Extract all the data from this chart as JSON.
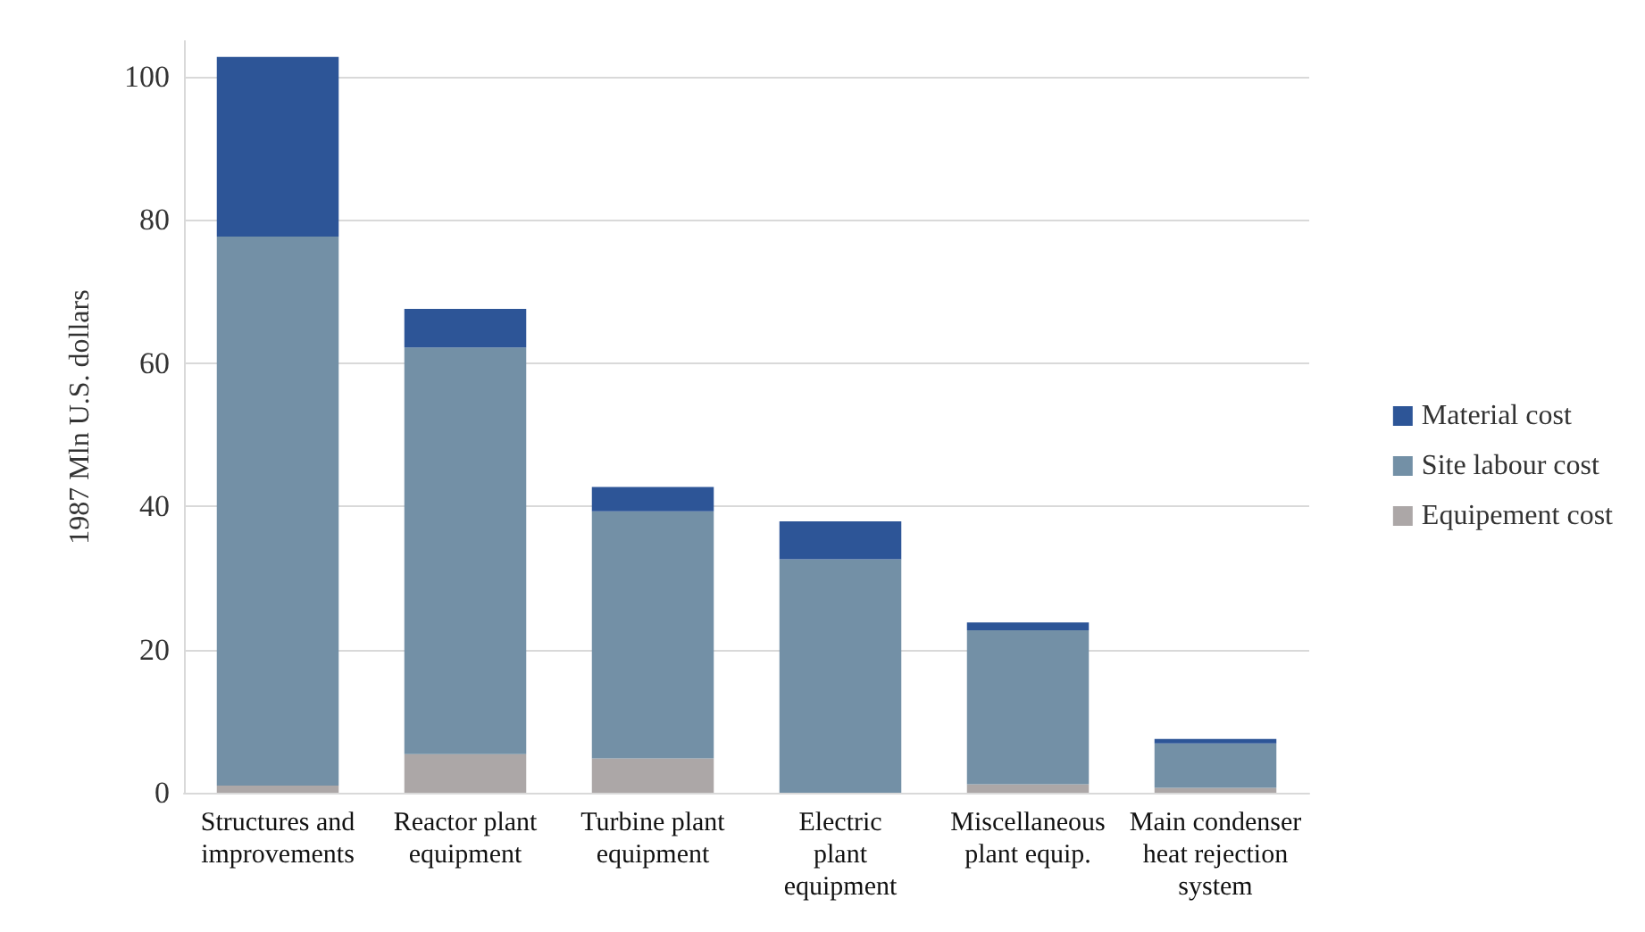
{
  "chart_data": {
    "type": "bar",
    "ylabel": "1987 Mln U.S. dollars",
    "categories": [
      "Structures and\nimprovements",
      "Reactor plant\nequipment",
      "Turbine plant\nequipment",
      "Electric\nplant\nequipment",
      "Miscellaneous\nplant equip.",
      "Main condenser\nheat rejection\nsystem"
    ],
    "stacked": true,
    "series": [
      {
        "name": "Equipement cost",
        "color": "#aca7a7",
        "values": [
          1.0,
          5.4,
          4.8,
          0,
          1.2,
          0.7
        ]
      },
      {
        "name": "Site labour cost",
        "color": "#7390a6",
        "values": [
          76.7,
          56.8,
          34.5,
          32.6,
          21.5,
          6.2
        ]
      },
      {
        "name": "Material cost",
        "color": "#2d5597",
        "values": [
          25.1,
          5.4,
          3.4,
          5.3,
          1.1,
          0.6
        ]
      }
    ],
    "ylim": [
      0,
      105
    ],
    "yticks": [
      0,
      20,
      40,
      60,
      80,
      100
    ],
    "grid": "y",
    "legend": "right"
  }
}
